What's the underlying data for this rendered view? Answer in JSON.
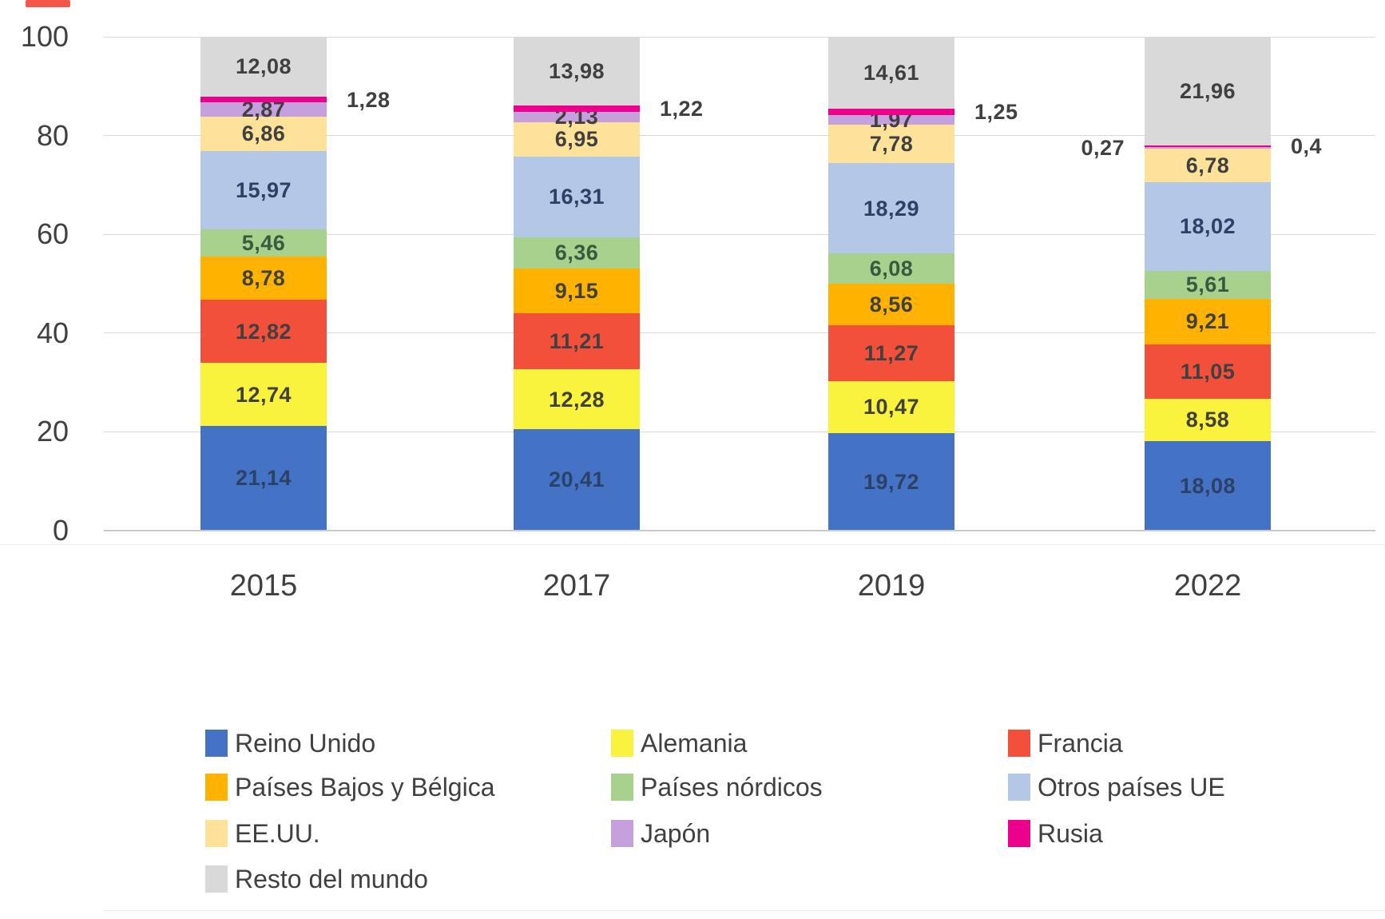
{
  "chart_data": {
    "type": "bar",
    "subtype": "stacked-100",
    "title": "",
    "xlabel": "",
    "ylabel": "",
    "ylim": [
      0,
      100
    ],
    "grid": true,
    "legend_position": "bottom",
    "categories": [
      "2015",
      "2017",
      "2019",
      "2022"
    ],
    "y_axis_ticks": [
      "0",
      "20",
      "40",
      "60",
      "80",
      "100"
    ],
    "series": [
      {
        "name": "Reino Unido",
        "color": "#4472c4",
        "label_color": "#2c4166",
        "values": [
          21.14,
          20.41,
          19.72,
          18.08
        ],
        "labels": [
          "21,14",
          "20,41",
          "19,72",
          "18,08"
        ],
        "placement": [
          "inside",
          "inside",
          "inside",
          "inside"
        ]
      },
      {
        "name": "Alemania",
        "color": "#faf33e",
        "label_color": "#404040",
        "values": [
          12.74,
          12.28,
          10.47,
          8.58
        ],
        "labels": [
          "12,74",
          "12,28",
          "10,47",
          "8,58"
        ],
        "placement": [
          "inside",
          "inside",
          "inside",
          "inside"
        ]
      },
      {
        "name": "Francia",
        "color": "#f2503b",
        "label_color": "#404040",
        "values": [
          12.82,
          11.21,
          11.27,
          11.05
        ],
        "labels": [
          "12,82",
          "11,21",
          "11,27",
          "11,05"
        ],
        "placement": [
          "inside",
          "inside",
          "inside",
          "inside"
        ]
      },
      {
        "name": "Países Bajos y Bélgica",
        "color": "#ffb300",
        "label_color": "#404040",
        "values": [
          8.78,
          9.15,
          8.56,
          9.21
        ],
        "labels": [
          "8,78",
          "9,15",
          "8,56",
          "9,21"
        ],
        "placement": [
          "inside",
          "inside",
          "inside",
          "inside"
        ]
      },
      {
        "name": "Países nórdicos",
        "color": "#a9d18e",
        "label_color": "#3a5a40",
        "values": [
          5.46,
          6.36,
          6.08,
          5.61
        ],
        "labels": [
          "5,46",
          "6,36",
          "6,08",
          "5,61"
        ],
        "placement": [
          "inside",
          "inside",
          "inside",
          "inside"
        ]
      },
      {
        "name": "Otros países UE",
        "color": "#b4c7e7",
        "label_color": "#2c4166",
        "values": [
          15.97,
          16.31,
          18.29,
          18.02
        ],
        "labels": [
          "15,97",
          "16,31",
          "18,29",
          "18,02"
        ],
        "placement": [
          "inside",
          "inside",
          "inside",
          "inside"
        ]
      },
      {
        "name": "EE.UU.",
        "color": "#ffe299",
        "label_color": "#404040",
        "values": [
          6.86,
          6.95,
          7.78,
          6.78
        ],
        "labels": [
          "6,86",
          "6,95",
          "7,78",
          "6,78"
        ],
        "placement": [
          "inside",
          "inside",
          "inside",
          "inside"
        ]
      },
      {
        "name": "Japón",
        "color": "#c5a0dd",
        "label_color": "#404040",
        "values": [
          2.87,
          2.13,
          1.97,
          0.27
        ],
        "labels": [
          "2,87",
          "2,13",
          "1,97",
          "0,27"
        ],
        "placement": [
          "inside",
          "inside",
          "inside",
          "outside-left"
        ]
      },
      {
        "name": "Rusia",
        "color": "#ec008c",
        "label_color": "#404040",
        "values": [
          1.28,
          1.22,
          1.25,
          0.4
        ],
        "labels": [
          "1,28",
          "1,22",
          "1,25",
          "0,4"
        ],
        "placement": [
          "outside-right",
          "outside-right",
          "outside-right",
          "outside-right"
        ]
      },
      {
        "name": "Resto del mundo",
        "color": "#d9d9d9",
        "label_color": "#404040",
        "values": [
          12.08,
          13.98,
          14.61,
          21.96
        ],
        "labels": [
          "12,08",
          "13,98",
          "14,61",
          "21,96"
        ],
        "placement": [
          "inside",
          "inside",
          "inside",
          "inside"
        ]
      }
    ],
    "legend_items": [
      "Reino Unido",
      "Alemania",
      "Francia",
      "Países Bajos y Bélgica",
      "Países nórdicos",
      "Otros países UE",
      "EE.UU.",
      "Japón",
      "Rusia",
      "Resto del mundo"
    ]
  }
}
